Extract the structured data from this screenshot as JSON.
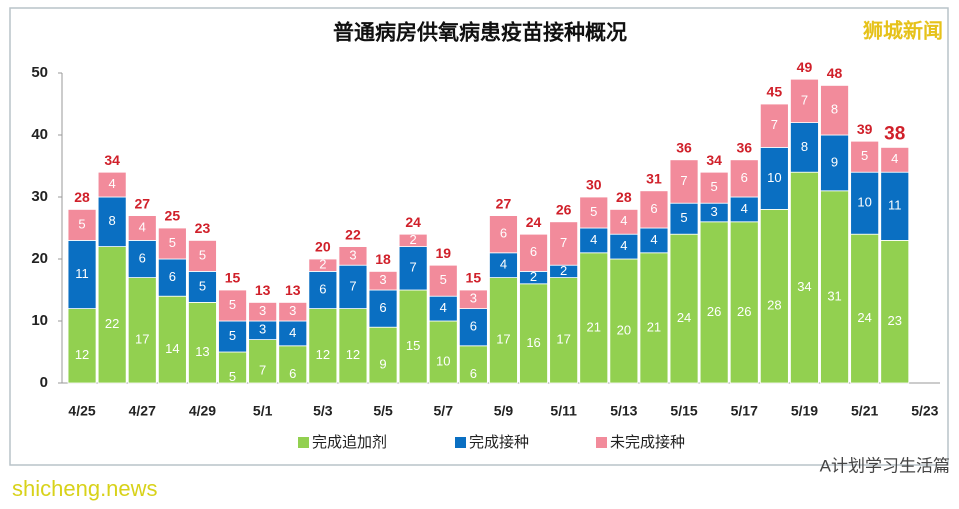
{
  "chart_data": {
    "type": "stacked_bar",
    "title": "普通病房供氧病患疫苗接种概况",
    "categories": [
      "4/25",
      null,
      "4/27",
      null,
      "4/29",
      null,
      "5/1",
      null,
      "5/3",
      null,
      "5/5",
      null,
      "5/7",
      null,
      "5/9",
      null,
      "5/11",
      null,
      "5/13",
      null,
      "5/15",
      null,
      "5/17",
      null,
      "5/19",
      null,
      "5/21",
      null,
      "5/23"
    ],
    "series": [
      {
        "name": "完成追加剂",
        "color": "#92d050",
        "values": [
          12,
          22,
          17,
          14,
          13,
          5,
          7,
          6,
          12,
          12,
          9,
          15,
          10,
          6,
          17,
          16,
          17,
          21,
          20,
          21,
          24,
          26,
          26,
          28,
          34,
          31,
          24,
          23,
          null
        ]
      },
      {
        "name": "完成接种",
        "color": "#0a6fc2",
        "values": [
          11,
          8,
          6,
          6,
          5,
          5,
          3,
          4,
          6,
          7,
          6,
          7,
          4,
          6,
          4,
          2,
          2,
          4,
          4,
          4,
          5,
          3,
          4,
          10,
          8,
          9,
          10,
          11,
          null
        ]
      },
      {
        "name": "未完成接种",
        "color": "#f28b9b",
        "values": [
          5,
          4,
          4,
          5,
          5,
          5,
          3,
          3,
          2,
          3,
          3,
          2,
          5,
          3,
          6,
          6,
          7,
          5,
          4,
          6,
          7,
          5,
          6,
          7,
          7,
          8,
          5,
          4,
          null
        ]
      }
    ],
    "totals": [
      28,
      34,
      27,
      25,
      23,
      15,
      13,
      13,
      20,
      22,
      18,
      24,
      19,
      15,
      27,
      24,
      26,
      30,
      28,
      31,
      36,
      34,
      36,
      45,
      49,
      48,
      39,
      38,
      null
    ],
    "total_color": "#d0202a",
    "ylim": [
      0,
      50
    ],
    "yticks": [
      0,
      10,
      20,
      30,
      40,
      50
    ],
    "legend": "bottom"
  },
  "watermarks": {
    "source": "狮城新闻",
    "site": "shicheng.news",
    "wechat": "A计划学习生活篇"
  }
}
